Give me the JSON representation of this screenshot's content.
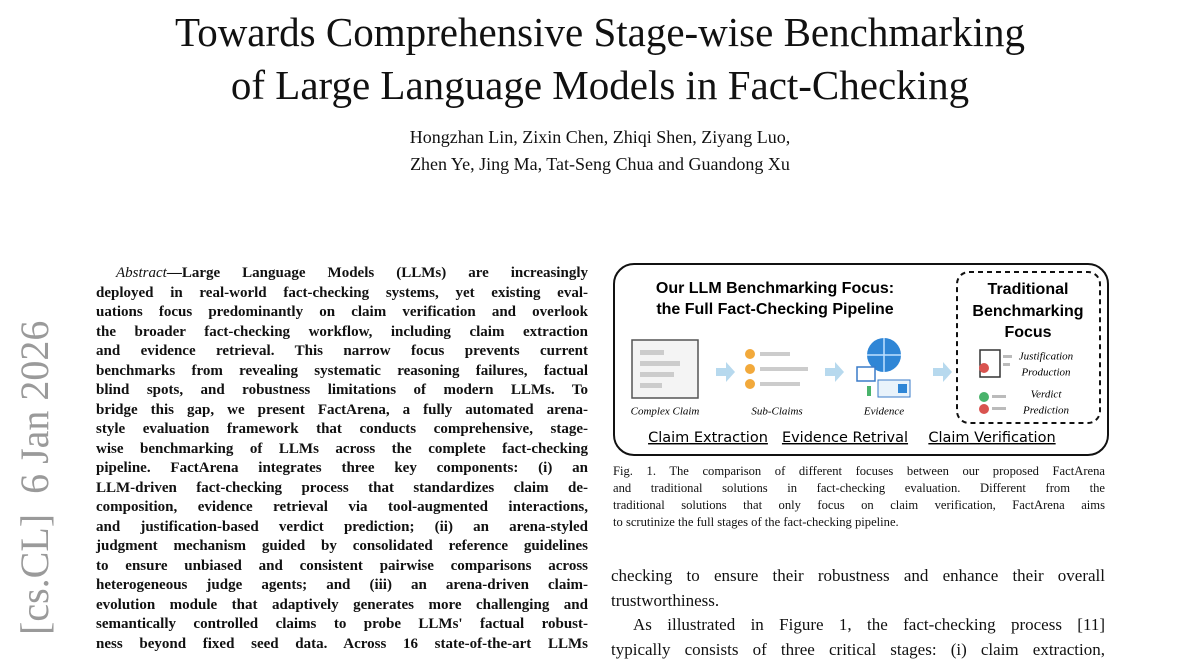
{
  "header": {
    "title_lines": [
      "Towards Comprehensive Stage-wise Benchmarking",
      "of Large Language Models in Fact-Checking"
    ],
    "author_lines": [
      "Hongzhan Lin, Zixin Chen, Zhiqi Shen, Ziyang Luo,",
      "Zhen Ye, Jing Ma, Tat-Seng Chua and Guandong Xu"
    ]
  },
  "arxiv_stamp": "[cs.CL]  6 Jan 2026",
  "abstract": {
    "label": "Abstract",
    "lines": [
      "—Large Language Models (LLMs) are increasingly",
      "deployed in real-world fact-checking systems, yet existing eval-",
      "uations focus predominantly on claim verification and overlook",
      "the broader fact-checking workflow, including claim extraction",
      "and evidence retrieval. This narrow focus prevents current",
      "benchmarks from revealing systematic reasoning failures, factual",
      "blind spots, and robustness limitations of modern LLMs. To",
      "bridge this gap, we present FactArena, a fully automated arena-",
      "style evaluation framework that conducts comprehensive, stage-",
      "wise benchmarking of LLMs across the complete fact-checking",
      "pipeline. FactArena integrates three key components: (i) an",
      "LLM-driven fact-checking process that standardizes claim de-",
      "composition, evidence retrieval via tool-augmented interactions,",
      "and justification-based verdict prediction; (ii) an arena-styled",
      "judgment mechanism guided by consolidated reference guidelines",
      "to ensure unbiased and consistent pairwise comparisons across",
      "heterogeneous judge agents; and (iii) an arena-driven claim-",
      "evolution module that adaptively generates more challenging and",
      "semantically controlled claims to probe LLMs' factual robust-",
      "ness beyond fixed seed data. Across 16 state-of-the-art LLMs"
    ]
  },
  "figure": {
    "title_lines": [
      "Our LLM Benchmarking Focus:",
      "the Full Fact-Checking Pipeline"
    ],
    "traditional_lines": [
      "Traditional",
      "Benchmarking",
      "Focus"
    ],
    "traditional_items": [
      [
        "Justification",
        "Production"
      ],
      [
        "Verdict",
        "Prediction"
      ]
    ],
    "icon_labels": [
      "Complex Claim",
      "Sub-Claims",
      "Evidence"
    ],
    "stages": [
      "Claim Extraction",
      "Evidence Retrival",
      "Claim Verification"
    ],
    "caption_lines": [
      "Fig. 1.  The comparison of different focuses between our proposed FactArena",
      "and traditional solutions in fact-checking evaluation. Different from the",
      "traditional solutions that only focus on claim verification, FactArena aims",
      "to scrutinize the full stages of the fact-checking pipeline."
    ]
  },
  "body": {
    "lines": [
      "checking to ensure their robustness and enhance their overall",
      "trustworthiness.",
      "As illustrated in Figure 1, the fact-checking process [11]",
      "typically consists of three critical stages: (i) claim extraction,"
    ]
  }
}
